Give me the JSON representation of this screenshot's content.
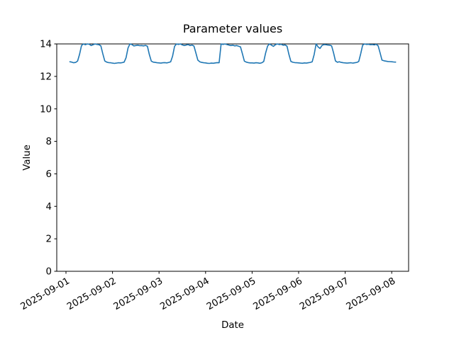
{
  "figure": {
    "background_color": "#ffffff",
    "axis_color": "#000000"
  },
  "chart_data": {
    "type": "line",
    "title": "Parameter values",
    "xlabel": "Date",
    "ylabel": "Value",
    "grid": false,
    "legend": null,
    "ylim": [
      0,
      14
    ],
    "y_ticks": [
      0,
      2,
      4,
      6,
      8,
      10,
      12,
      14
    ],
    "x_tick_labels": [
      "2025-09-01",
      "2025-09-02",
      "2025-09-03",
      "2025-09-04",
      "2025-09-05",
      "2025-09-06",
      "2025-09-07",
      "2025-09-08"
    ],
    "x_tick_rotation_deg": 30,
    "series": [
      {
        "name": "Parameter values",
        "color": "#1f77b4",
        "x_start": "2025-09-01T02:00",
        "x_step_hours": 1,
        "values": [
          12.9,
          12.88,
          12.84,
          12.86,
          12.95,
          13.35,
          13.9,
          14.0,
          13.95,
          14.0,
          13.98,
          13.9,
          13.95,
          14.0,
          13.97,
          13.95,
          13.88,
          13.4,
          12.95,
          12.88,
          12.85,
          12.84,
          12.82,
          12.8,
          12.82,
          12.84,
          12.83,
          12.85,
          12.88,
          13.15,
          13.75,
          14.0,
          13.96,
          13.88,
          13.9,
          13.92,
          13.89,
          13.9,
          13.88,
          13.91,
          13.86,
          13.35,
          12.94,
          12.88,
          12.86,
          12.84,
          12.83,
          12.82,
          12.84,
          12.85,
          12.83,
          12.86,
          12.9,
          13.25,
          13.85,
          14.0,
          13.97,
          14.0,
          13.94,
          13.9,
          13.93,
          13.96,
          13.9,
          13.93,
          13.87,
          13.45,
          13.0,
          12.9,
          12.86,
          12.84,
          12.83,
          12.81,
          12.8,
          12.82,
          12.81,
          12.83,
          12.85,
          12.84,
          14.0,
          13.97,
          14.0,
          13.96,
          13.93,
          13.9,
          13.92,
          13.88,
          13.9,
          13.86,
          13.82,
          13.4,
          12.94,
          12.88,
          12.85,
          12.83,
          12.83,
          12.82,
          12.84,
          12.83,
          12.81,
          12.84,
          12.92,
          13.45,
          13.88,
          14.0,
          13.92,
          13.85,
          13.95,
          14.0,
          13.96,
          13.98,
          13.92,
          13.94,
          13.86,
          13.35,
          12.92,
          12.87,
          12.85,
          12.84,
          12.83,
          12.82,
          12.81,
          12.83,
          12.82,
          12.84,
          12.86,
          12.9,
          13.35,
          14.0,
          13.82,
          13.72,
          13.9,
          13.96,
          13.95,
          13.93,
          13.92,
          13.88,
          13.45,
          12.95,
          12.87,
          12.9,
          12.86,
          12.84,
          12.83,
          12.82,
          12.83,
          12.84,
          12.82,
          12.84,
          12.86,
          12.92,
          13.4,
          13.92,
          14.0,
          13.97,
          13.98,
          13.95,
          13.96,
          13.94,
          13.98,
          13.88,
          13.45,
          13.0,
          12.96,
          12.94,
          12.92,
          12.91,
          12.9,
          12.89,
          12.88
        ]
      }
    ]
  }
}
